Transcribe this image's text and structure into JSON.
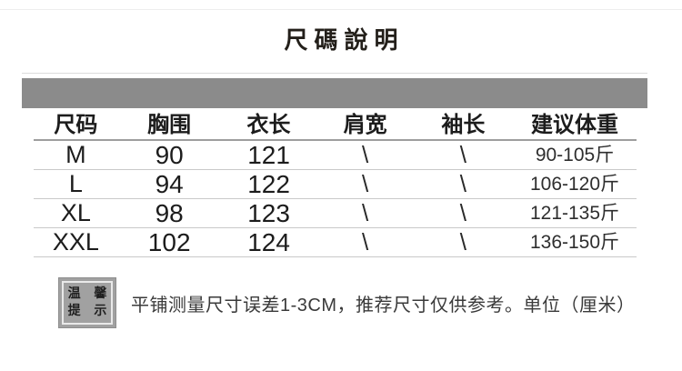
{
  "title": "尺碼說明",
  "size_table": {
    "headers": [
      "尺码",
      "胸围",
      "衣长",
      "肩宽",
      "袖长",
      "建议体重"
    ],
    "rows": [
      [
        "M",
        "90",
        "121",
        "\\",
        "\\",
        "90-105斤"
      ],
      [
        "L",
        "94",
        "122",
        "\\",
        "\\",
        "106-120斤"
      ],
      [
        "XL",
        "98",
        "123",
        "\\",
        "\\",
        "121-135斤"
      ],
      [
        "XXL",
        "102",
        "124",
        "\\",
        "\\",
        "136-150斤"
      ]
    ]
  },
  "tip": {
    "badge": {
      "line1": "温 馨",
      "line2": "提 示"
    },
    "text": "平铺测量尺寸误差1-3CM，推荐尺寸仅供参考。单位（厘米）"
  },
  "colors": {
    "bar": "#8b8b8b",
    "badge_bg": "#a1a1a1",
    "badge_frame": "#e9e9e9",
    "header_line": "#9e9e9e",
    "row_line": "#c9c9c9",
    "text_dark": "#1c1c1c",
    "note_text": "#3a3a3a",
    "title_color": "#231f1a"
  }
}
